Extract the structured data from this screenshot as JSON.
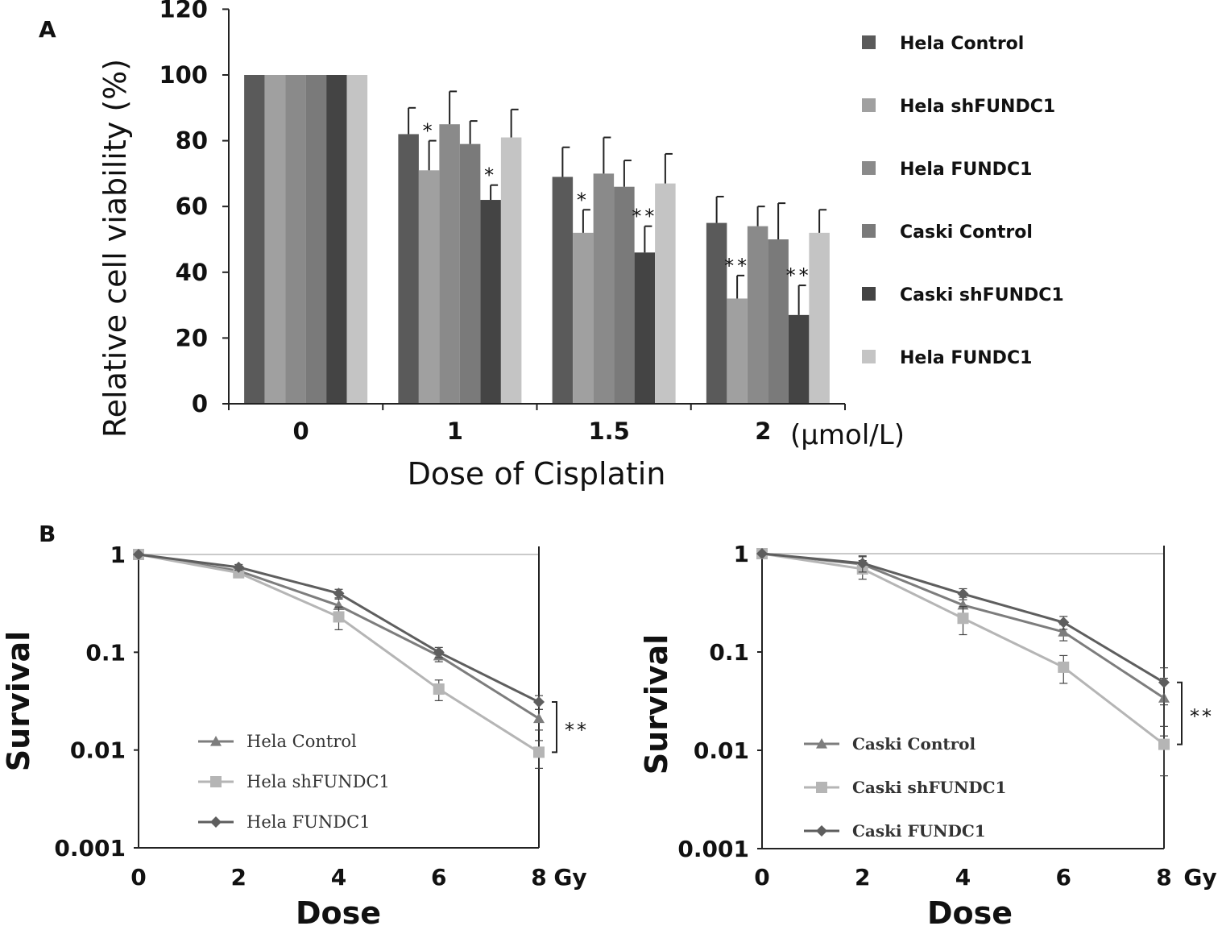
{
  "figure": {
    "panel_a_label": "A",
    "panel_b_label": "B"
  },
  "chart_data": [
    {
      "id": "A",
      "type": "bar",
      "xlabel": "Dose of Cisplatin",
      "x_unit": "(μmol/L)",
      "ylabel": "Relative cell viability (%)",
      "ylim": [
        0,
        120
      ],
      "yticks": [
        0,
        20,
        40,
        60,
        80,
        100,
        120
      ],
      "categories": [
        "0",
        "1",
        "1.5",
        "2"
      ],
      "legend_position": "right",
      "series": [
        {
          "name": "Hela Control",
          "color": "#5a5a5a",
          "values": [
            100,
            82,
            69,
            55
          ],
          "errors": [
            0,
            8,
            9,
            8
          ],
          "marks": [
            "",
            "",
            "",
            ""
          ]
        },
        {
          "name": "Hela shFUNDC1",
          "color": "#a0a0a0",
          "values": [
            100,
            71,
            52,
            32
          ],
          "errors": [
            0,
            9,
            7,
            7
          ],
          "marks": [
            "",
            "*",
            "*",
            "**"
          ]
        },
        {
          "name": "Hela FUNDC1",
          "color": "#8a8a8a",
          "values": [
            100,
            85,
            70,
            54
          ],
          "errors": [
            0,
            10,
            11,
            6
          ],
          "marks": [
            "",
            "",
            "",
            ""
          ]
        },
        {
          "name": "Caski Control",
          "color": "#7a7a7a",
          "values": [
            100,
            79,
            66,
            50
          ],
          "errors": [
            0,
            7,
            8,
            11
          ],
          "marks": [
            "",
            "",
            "",
            ""
          ]
        },
        {
          "name": "Caski shFUNDC1",
          "color": "#444444",
          "values": [
            100,
            62,
            46,
            27
          ],
          "errors": [
            0,
            4.5,
            8,
            9
          ],
          "marks": [
            "",
            "*",
            "**",
            "**"
          ]
        },
        {
          "name": "Hela FUNDC1",
          "color": "#c4c4c4",
          "values": [
            100,
            81,
            67,
            52
          ],
          "errors": [
            0,
            8.5,
            9,
            7
          ],
          "marks": [
            "",
            "",
            "",
            ""
          ]
        }
      ]
    },
    {
      "id": "B-left",
      "type": "line",
      "xlabel": "Dose",
      "x_unit": "Gy",
      "ylabel": "Survival",
      "yscale": "log",
      "ylim": [
        0.001,
        1
      ],
      "yticks": [
        "1",
        "0.1",
        "0.01",
        "0.001"
      ],
      "x": [
        0,
        2,
        4,
        6,
        8
      ],
      "xticks": [
        "0",
        "2",
        "4",
        "6",
        "8"
      ],
      "significance": "**",
      "legend_position": "lower-left",
      "series": [
        {
          "name": "Hela Control",
          "marker": "triangle",
          "color": "#7d7d7d",
          "values": [
            1,
            0.68,
            0.3,
            0.092,
            0.021
          ],
          "errors": [
            0,
            0.05,
            0.05,
            0.012,
            0.005
          ]
        },
        {
          "name": "Hela shFUNDC1",
          "marker": "square",
          "color": "#b5b5b5",
          "values": [
            1,
            0.65,
            0.23,
            0.042,
            0.0095
          ],
          "errors": [
            0,
            0.05,
            0.06,
            0.01,
            0.003
          ]
        },
        {
          "name": "Hela FUNDC1",
          "marker": "diamond",
          "color": "#5e5e5e",
          "values": [
            1,
            0.74,
            0.4,
            0.1,
            0.031
          ],
          "errors": [
            0,
            0.05,
            0.04,
            0.012,
            0.005
          ]
        }
      ]
    },
    {
      "id": "B-right",
      "type": "line",
      "xlabel": "Dose",
      "x_unit": "Gy",
      "ylabel": "Survival",
      "yscale": "log",
      "ylim": [
        0.001,
        1
      ],
      "yticks": [
        "1",
        "0.1",
        "0.01",
        "0.001"
      ],
      "x": [
        0,
        2,
        4,
        6,
        8
      ],
      "xticks": [
        "0",
        "2",
        "4",
        "6",
        "8"
      ],
      "significance": "**",
      "legend_position": "lower-left",
      "series": [
        {
          "name": "Caski Control",
          "marker": "triangle",
          "color": "#7d7d7d",
          "values": [
            1,
            0.78,
            0.3,
            0.16,
            0.034
          ],
          "errors": [
            0,
            0.15,
            0.06,
            0.03,
            0.02
          ]
        },
        {
          "name": "Caski shFUNDC1",
          "marker": "square",
          "color": "#b5b5b5",
          "values": [
            1,
            0.7,
            0.22,
            0.07,
            0.0115
          ],
          "errors": [
            0,
            0.15,
            0.07,
            0.022,
            0.006
          ]
        },
        {
          "name": "Caski FUNDC1",
          "marker": "diamond",
          "color": "#5e5e5e",
          "values": [
            1,
            0.8,
            0.39,
            0.2,
            0.049
          ],
          "errors": [
            0,
            0.15,
            0.05,
            0.03,
            0.02
          ]
        }
      ]
    }
  ]
}
